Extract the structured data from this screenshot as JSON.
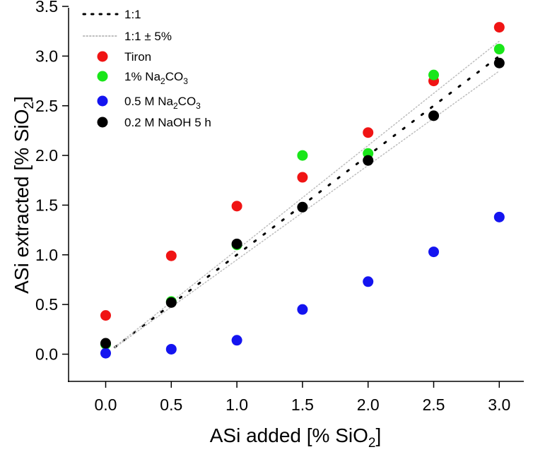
{
  "chart_data": {
    "type": "scatter",
    "title": "",
    "xlabel": {
      "main": "ASi added [% SiO",
      "sub": "2",
      "tail": "]"
    },
    "ylabel": {
      "main": "ASi extracted [% SiO",
      "sub": "2",
      "tail": "]"
    },
    "xlim": [
      -0.25,
      3.25
    ],
    "ylim": [
      -0.25,
      3.5
    ],
    "x_ticks": [
      0.0,
      0.5,
      1.0,
      1.5,
      2.0,
      2.5,
      3.0
    ],
    "x_tick_labels": [
      "0.0",
      "0.5",
      "1.0",
      "1.5",
      "2.0",
      "2.5",
      "3.0"
    ],
    "y_ticks": [
      0.0,
      0.5,
      1.0,
      1.5,
      2.0,
      2.5,
      3.0,
      3.5
    ],
    "y_tick_labels": [
      "0.0",
      "0.5",
      "1.0",
      "1.5",
      "2.0",
      "2.5",
      "3.0",
      "3.5"
    ],
    "grid": false,
    "legend_position": "top-left",
    "reference_lines": [
      {
        "name": "1:1",
        "label": "1:1",
        "x": [
          0.07,
          3.0
        ],
        "slope": 1.0,
        "style": "dotted-black",
        "color": "#000000"
      },
      {
        "name": "1:1 + 5%",
        "label": "1:1 ± 5%",
        "x": [
          0.07,
          3.0
        ],
        "slope": 1.05,
        "style": "dotted-grey",
        "color": "#bdbdbd"
      },
      {
        "name": "1:1 - 5%",
        "label": "",
        "x": [
          0.07,
          3.0
        ],
        "slope": 0.95,
        "style": "dotted-grey",
        "color": "#bdbdbd"
      }
    ],
    "series": [
      {
        "name": "Tiron",
        "label": "Tiron",
        "color": "#f01414",
        "x": [
          0.0,
          0.5,
          1.0,
          1.5,
          2.0,
          2.5,
          3.0
        ],
        "y": [
          0.39,
          0.99,
          1.49,
          1.78,
          2.23,
          2.75,
          3.29
        ]
      },
      {
        "name": "1% Na2CO3",
        "label": {
          "main": "1% Na",
          "sub1": "2",
          "mid": "CO",
          "sub2": "3"
        },
        "color": "#19e619",
        "x": [
          0.0,
          0.5,
          1.0,
          1.5,
          2.0,
          2.5,
          3.0
        ],
        "y": [
          0.1,
          0.53,
          1.1,
          2.0,
          2.02,
          2.81,
          3.07
        ]
      },
      {
        "name": "0.5 M Na2CO3",
        "label": {
          "main": "0.5 M Na",
          "sub1": "2",
          "mid": "CO",
          "sub2": "3"
        },
        "color": "#1414f0",
        "x": [
          0.0,
          0.5,
          1.0,
          1.5,
          2.0,
          2.5,
          3.0
        ],
        "y": [
          0.01,
          0.05,
          0.14,
          0.45,
          0.73,
          1.03,
          1.38
        ]
      },
      {
        "name": "0.2 M NaOH 5 h",
        "label": "0.2 M NaOH 5 h",
        "color": "#000000",
        "x": [
          0.0,
          0.5,
          1.0,
          1.5,
          2.0,
          2.5,
          3.0
        ],
        "y": [
          0.11,
          0.52,
          1.11,
          1.48,
          1.95,
          2.4,
          2.93
        ]
      }
    ]
  }
}
